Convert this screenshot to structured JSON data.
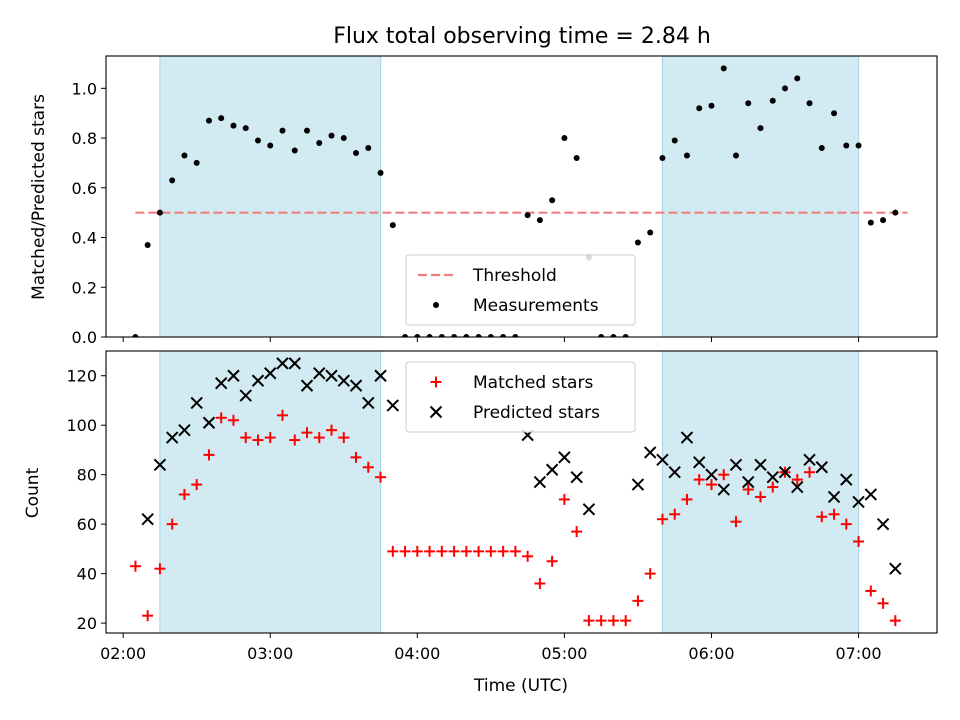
{
  "colors": {
    "shade": "#add8e6",
    "threshold": "#f08080",
    "measurement": "#000000",
    "matched": "#ff0000",
    "predicted": "#000000"
  },
  "chart_data": [
    {
      "type": "scatter",
      "title": "Flux total observing time = 2.84 h",
      "xlabel": "",
      "ylabel": "Matched/Predicted stars",
      "xlim": [
        "01:53",
        "07:32"
      ],
      "ylim": [
        0,
        1.13
      ],
      "yticks": [
        "0.0",
        "0.2",
        "0.4",
        "0.6",
        "0.8",
        "1.0"
      ],
      "shaded_intervals": [
        [
          "02:15",
          "03:45"
        ],
        [
          "05:40",
          "07:00"
        ]
      ],
      "threshold": {
        "label": "Threshold",
        "value": 0.5,
        "x_range": [
          "02:05",
          "07:20"
        ]
      },
      "legend": {
        "position": "lower center",
        "entries": [
          "Threshold",
          "Measurements"
        ]
      },
      "series": [
        {
          "name": "Measurements",
          "x": [
            "02:05",
            "02:10",
            "02:15",
            "02:20",
            "02:25",
            "02:30",
            "02:35",
            "02:40",
            "02:45",
            "02:50",
            "02:55",
            "03:00",
            "03:05",
            "03:10",
            "03:15",
            "03:20",
            "03:25",
            "03:30",
            "03:35",
            "03:40",
            "03:45",
            "03:50",
            "03:55",
            "04:00",
            "04:05",
            "04:10",
            "04:15",
            "04:20",
            "04:25",
            "04:30",
            "04:35",
            "04:40",
            "04:45",
            "04:50",
            "04:55",
            "05:00",
            "05:05",
            "05:10",
            "05:15",
            "05:20",
            "05:25",
            "05:30",
            "05:35",
            "05:40",
            "05:45",
            "05:50",
            "05:55",
            "06:00",
            "06:05",
            "06:10",
            "06:15",
            "06:20",
            "06:25",
            "06:30",
            "06:35",
            "06:40",
            "06:45",
            "06:50",
            "06:55",
            "07:00",
            "07:05",
            "07:10",
            "07:15"
          ],
          "y": [
            0.0,
            0.37,
            0.5,
            0.63,
            0.73,
            0.7,
            0.87,
            0.88,
            0.85,
            0.84,
            0.79,
            0.77,
            0.83,
            0.75,
            0.83,
            0.78,
            0.81,
            0.8,
            0.74,
            0.76,
            0.66,
            0.45,
            0.0,
            0.0,
            0.0,
            0.0,
            0.0,
            0.0,
            0.0,
            0.0,
            0.0,
            0.0,
            0.49,
            0.47,
            0.55,
            0.8,
            0.72,
            0.32,
            0.0,
            0.0,
            0.0,
            0.38,
            0.42,
            0.72,
            0.79,
            0.73,
            0.92,
            0.93,
            1.08,
            0.73,
            0.94,
            0.84,
            0.95,
            1.0,
            1.04,
            0.94,
            0.76,
            0.9,
            0.77,
            0.77,
            0.46,
            0.47,
            0.5
          ]
        }
      ]
    },
    {
      "type": "scatter",
      "title": "",
      "xlabel": "Time (UTC)",
      "ylabel": "Count",
      "xlim": [
        "01:53",
        "07:32"
      ],
      "ylim": [
        16,
        130
      ],
      "yticks": [
        "20",
        "40",
        "60",
        "80",
        "100",
        "120"
      ],
      "xticks": [
        "02:00",
        "03:00",
        "04:00",
        "05:00",
        "06:00",
        "07:00"
      ],
      "shaded_intervals": [
        [
          "02:15",
          "03:45"
        ],
        [
          "05:40",
          "07:00"
        ]
      ],
      "legend": {
        "position": "upper center",
        "entries": [
          "Matched stars",
          "Predicted stars"
        ]
      },
      "series": [
        {
          "name": "Matched stars",
          "marker": "+",
          "x": [
            "02:05",
            "02:10",
            "02:15",
            "02:20",
            "02:25",
            "02:30",
            "02:35",
            "02:40",
            "02:45",
            "02:50",
            "02:55",
            "03:00",
            "03:05",
            "03:10",
            "03:15",
            "03:20",
            "03:25",
            "03:30",
            "03:35",
            "03:40",
            "03:45",
            "03:50",
            "03:55",
            "04:00",
            "04:05",
            "04:10",
            "04:15",
            "04:20",
            "04:25",
            "04:30",
            "04:35",
            "04:40",
            "04:45",
            "04:50",
            "04:55",
            "05:00",
            "05:05",
            "05:10",
            "05:15",
            "05:20",
            "05:25",
            "05:30",
            "05:35",
            "05:40",
            "05:45",
            "05:50",
            "05:55",
            "06:00",
            "06:05",
            "06:10",
            "06:15",
            "06:20",
            "06:25",
            "06:30",
            "06:35",
            "06:40",
            "06:45",
            "06:50",
            "06:55",
            "07:00",
            "07:05",
            "07:10",
            "07:15"
          ],
          "y": [
            43,
            23,
            42,
            60,
            72,
            76,
            88,
            103,
            102,
            95,
            94,
            95,
            104,
            94,
            97,
            95,
            98,
            95,
            87,
            83,
            79,
            49,
            49,
            49,
            49,
            49,
            49,
            49,
            49,
            49,
            49,
            49,
            47,
            36,
            45,
            70,
            57,
            21,
            21,
            21,
            21,
            29,
            40,
            62,
            64,
            70,
            78,
            76,
            80,
            61,
            74,
            71,
            75,
            81,
            78,
            81,
            63,
            64,
            60,
            53,
            33,
            28,
            21
          ]
        },
        {
          "name": "Predicted stars",
          "marker": "x",
          "x": [
            "02:10",
            "02:15",
            "02:20",
            "02:25",
            "02:30",
            "02:35",
            "02:40",
            "02:45",
            "02:50",
            "02:55",
            "03:00",
            "03:05",
            "03:10",
            "03:15",
            "03:20",
            "03:25",
            "03:30",
            "03:35",
            "03:40",
            "03:45",
            "03:50",
            "04:45",
            "04:50",
            "04:55",
            "05:00",
            "05:05",
            "05:10",
            "05:30",
            "05:35",
            "05:40",
            "05:45",
            "05:50",
            "05:55",
            "06:00",
            "06:05",
            "06:10",
            "06:15",
            "06:20",
            "06:25",
            "06:30",
            "06:35",
            "06:40",
            "06:45",
            "06:50",
            "06:55",
            "07:00",
            "07:05",
            "07:10",
            "07:15"
          ],
          "y": [
            62,
            84,
            95,
            98,
            109,
            101,
            117,
            120,
            112,
            118,
            121,
            125,
            125,
            116,
            121,
            120,
            118,
            116,
            109,
            120,
            108,
            96,
            77,
            82,
            87,
            79,
            66,
            76,
            89,
            86,
            81,
            95,
            85,
            80,
            74,
            84,
            77,
            84,
            79,
            81,
            75,
            86,
            83,
            71,
            78,
            69,
            72,
            60,
            42
          ]
        }
      ]
    }
  ]
}
